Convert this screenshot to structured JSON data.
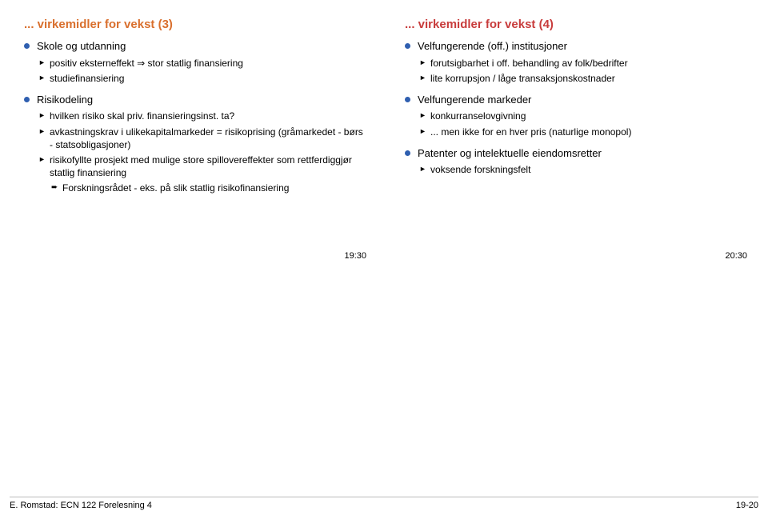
{
  "colors": {
    "title_left": "#d96f2d",
    "title_right": "#c83c3c",
    "bullet_l1": "#2f5fb0",
    "text": "#000000",
    "background": "#ffffff",
    "footer_rule": "#bbbbbb"
  },
  "fontsizes": {
    "title": 15,
    "l1": 13,
    "l2": 12,
    "l3": 12,
    "footer": 11,
    "pagetime": 11
  },
  "left": {
    "title": "... virkemidler for vekst (3)",
    "groups": [
      {
        "l1": "Skole og utdanning",
        "l2": [
          "positiv eksterneffekt ⇒ stor statlig finansiering",
          "studiefinansiering"
        ]
      },
      {
        "l1": "Risikodeling",
        "l2": [
          "hvilken risiko skal priv. finansieringsinst. ta?",
          "avkastningskrav i ulikekapitalmarkeder = risikoprising (gråmarkedet - børs - statsobligasjoner)",
          "risikofyllte prosjekt med mulige store spillovereffekter som rettferdiggjør statlig finansiering"
        ],
        "l3": [
          "Forskningsrådet - eks. på slik statlig risikofinansiering"
        ]
      }
    ],
    "pagetime": "19:30"
  },
  "right": {
    "title": "... virkemidler for vekst (4)",
    "groups": [
      {
        "l1": "Velfungerende (off.) institusjoner",
        "l2": [
          "forutsigbarhet i off. behandling av folk/bedrifter",
          "lite korrupsjon / låge transaksjonskostnader"
        ]
      },
      {
        "l1": "Velfungerende markeder",
        "l2": [
          "konkurranselovgivning",
          "... men ikke for en hver pris (naturlige monopol)"
        ]
      },
      {
        "l1": "Patenter og intelektuelle eiendomsretter",
        "l2": [
          "voksende forskningsfelt"
        ]
      }
    ],
    "pagetime": "20:30"
  },
  "footer": {
    "left": "E. Romstad: ECN 122 Forelesning 4",
    "right": "19-20"
  }
}
